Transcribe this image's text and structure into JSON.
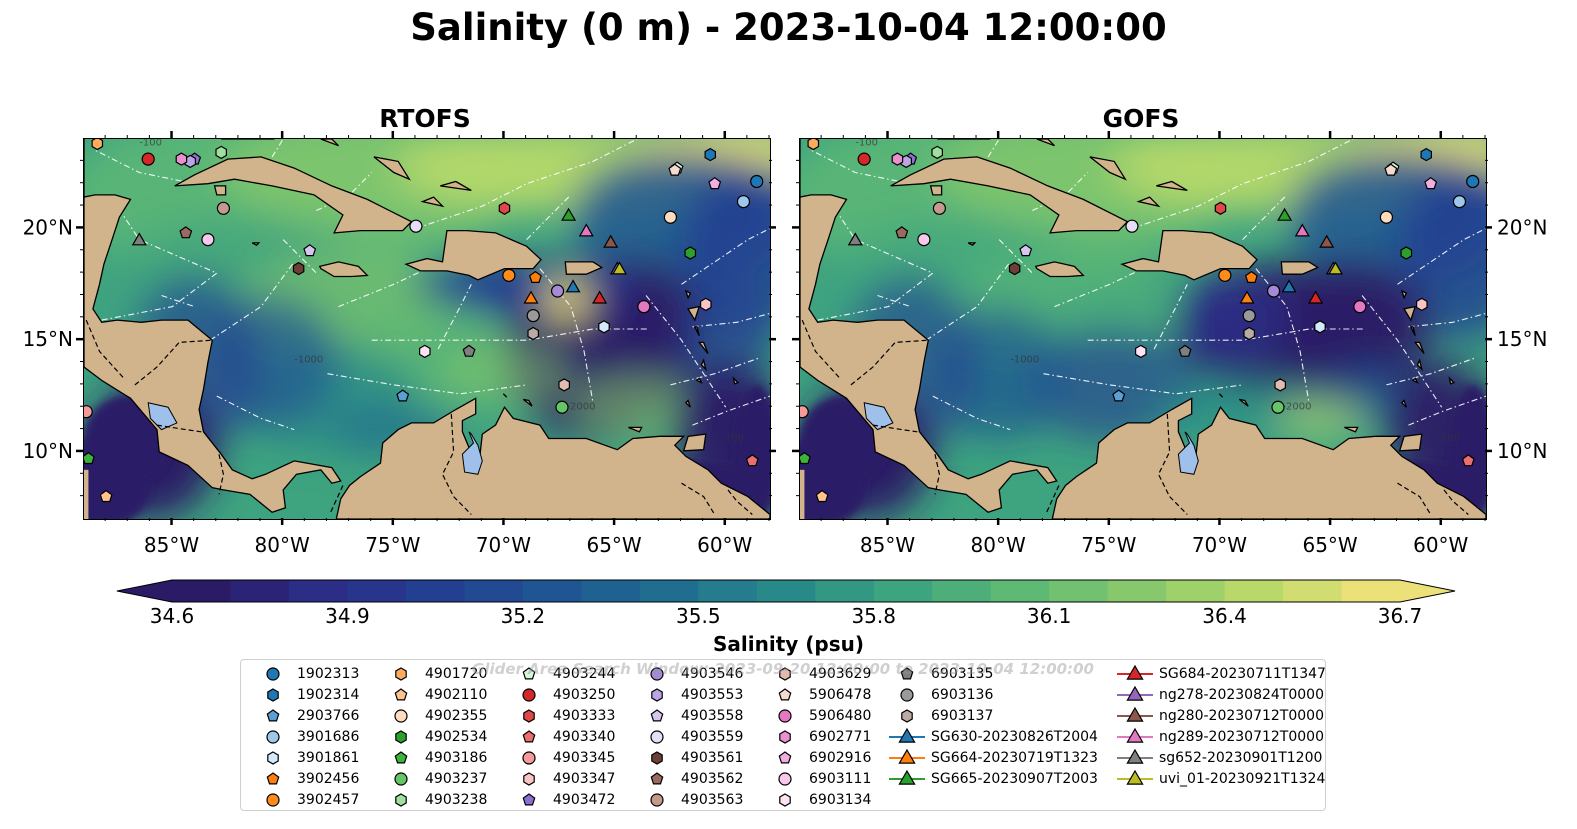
{
  "title": "Salinity (0 m) - 2023-10-04 12:00:00",
  "panels": [
    {
      "title": "RTOFS",
      "variant": "rtofs"
    },
    {
      "title": "GOFS",
      "variant": "gofs"
    }
  ],
  "axes": {
    "lon_ticks": [
      "85°W",
      "80°W",
      "75°W",
      "70°W",
      "65°W",
      "60°W"
    ],
    "lat_ticks": [
      "20°N",
      "15°N",
      "10°N"
    ],
    "lon_range": [
      -89,
      -58
    ],
    "lat_range": [
      7,
      24
    ]
  },
  "colorbar": {
    "label": "Salinity (psu)",
    "ticks": [
      "34.6",
      "34.9",
      "35.2",
      "35.5",
      "35.8",
      "36.1",
      "36.4",
      "36.7"
    ],
    "range": [
      34.6,
      36.7
    ],
    "colors": [
      "#2b1a66",
      "#2b2d86",
      "#233f92",
      "#1f5592",
      "#1f6e8f",
      "#288a88",
      "#3ea37f",
      "#5eb974",
      "#86c86b",
      "#b8d96a",
      "#ece078"
    ]
  },
  "map_colors": {
    "land": "#d2b48c",
    "lake": "#9fc0ea"
  },
  "watermark": "Glider Area Search Window: 2023-09-20 12:00:00 to 2023-10-04 12:00:00",
  "legend": {
    "columns": [
      [
        {
          "label": "1902313",
          "marker": "circle",
          "color": "#1f77b4"
        },
        {
          "label": "1902314",
          "marker": "hexagon",
          "color": "#1f77b4"
        },
        {
          "label": "2903766",
          "marker": "pentagon",
          "color": "#5d9fd3"
        },
        {
          "label": "3901686",
          "marker": "circle",
          "color": "#9ec8ea"
        },
        {
          "label": "3901861",
          "marker": "hexagon",
          "color": "#d4e9fb"
        },
        {
          "label": "3902456",
          "marker": "pentagon",
          "color": "#ff7f0e"
        },
        {
          "label": "3902457",
          "marker": "circle",
          "color": "#ff8c1a"
        }
      ],
      [
        {
          "label": "4901720",
          "marker": "hexagon",
          "color": "#ffab5e"
        },
        {
          "label": "4902110",
          "marker": "pentagon",
          "color": "#ffc38f"
        },
        {
          "label": "4902355",
          "marker": "circle",
          "color": "#ffdcbf"
        },
        {
          "label": "4902534",
          "marker": "hexagon",
          "color": "#2ca02c"
        },
        {
          "label": "4903186",
          "marker": "pentagon",
          "color": "#3cb33c"
        },
        {
          "label": "4903237",
          "marker": "circle",
          "color": "#66c566"
        },
        {
          "label": "4903238",
          "marker": "hexagon",
          "color": "#9fe09f"
        }
      ],
      [
        {
          "label": "4903244",
          "marker": "pentagon",
          "color": "#d6f8d6"
        },
        {
          "label": "4903250",
          "marker": "circle",
          "color": "#d62728"
        },
        {
          "label": "4903333",
          "marker": "hexagon",
          "color": "#e04848"
        },
        {
          "label": "4903340",
          "marker": "pentagon",
          "color": "#ec6f6f"
        },
        {
          "label": "4903345",
          "marker": "circle",
          "color": "#f49a9a"
        },
        {
          "label": "4903347",
          "marker": "hexagon",
          "color": "#fbc4c4"
        },
        {
          "label": "4903472",
          "marker": "pentagon",
          "color": "#8c6fd0"
        }
      ],
      [
        {
          "label": "4903546",
          "marker": "circle",
          "color": "#a58ad8"
        },
        {
          "label": "4903553",
          "marker": "hexagon",
          "color": "#bba6e2"
        },
        {
          "label": "4903558",
          "marker": "pentagon",
          "color": "#d4c6ef"
        },
        {
          "label": "4903559",
          "marker": "circle",
          "color": "#e8ddf6"
        },
        {
          "label": "4903561",
          "marker": "hexagon",
          "color": "#6d3f36"
        },
        {
          "label": "4903562",
          "marker": "pentagon",
          "color": "#9a6a5f"
        },
        {
          "label": "4903563",
          "marker": "circle",
          "color": "#c49a8e"
        }
      ],
      [
        {
          "label": "4903629",
          "marker": "hexagon",
          "color": "#e0bbb0"
        },
        {
          "label": "5906478",
          "marker": "pentagon",
          "color": "#f6dad0"
        },
        {
          "label": "5906480",
          "marker": "circle",
          "color": "#e377c2"
        },
        {
          "label": "6902771",
          "marker": "hexagon",
          "color": "#ea8fd0"
        },
        {
          "label": "6902916",
          "marker": "pentagon",
          "color": "#f2aee0"
        },
        {
          "label": "6903111",
          "marker": "circle",
          "color": "#f7c9ea"
        },
        {
          "label": "6903134",
          "marker": "hexagon",
          "color": "#fde3f5"
        }
      ],
      [
        {
          "label": "6903135",
          "marker": "pentagon",
          "color": "#7f7f7f"
        },
        {
          "label": "6903136",
          "marker": "circle",
          "color": "#9a9a9a"
        },
        {
          "label": "6903137",
          "marker": "hexagon",
          "color": "#bcaaa4"
        },
        {
          "label": "SG630-20230826T2004",
          "marker": "triangle-line",
          "color": "#1f77b4"
        },
        {
          "label": "SG664-20230719T1323",
          "marker": "triangle-line",
          "color": "#ff7f0e"
        },
        {
          "label": "SG665-20230907T2003",
          "marker": "triangle-line",
          "color": "#2ca02c"
        }
      ],
      [
        {
          "label": "SG684-20230711T1347",
          "marker": "triangle-line",
          "color": "#d62728"
        },
        {
          "label": "ng278-20230824T0000",
          "marker": "triangle-line",
          "color": "#9467bd"
        },
        {
          "label": "ng280-20230712T0000",
          "marker": "triangle-line",
          "color": "#8c564b"
        },
        {
          "label": "ng289-20230712T0000",
          "marker": "triangle-line",
          "color": "#e377c2"
        },
        {
          "label": "sg652-20230901T1200",
          "marker": "triangle-line",
          "color": "#7f7f7f"
        },
        {
          "label": "uvi_01-20230921T1324",
          "marker": "triangle-line",
          "color": "#bcbd22"
        }
      ]
    ]
  },
  "chart_data": {
    "type": "heatmap",
    "variable": "Salinity (0 m)",
    "units": "psu",
    "time": "2023-10-04 12:00:00",
    "color_range": [
      34.6,
      36.7
    ],
    "xlabel": "",
    "ylabel": "",
    "xlim": [
      -89,
      -58
    ],
    "ylim": [
      7,
      24
    ],
    "x_ticks": [
      "85°W",
      "80°W",
      "75°W",
      "70°W",
      "65°W",
      "60°W"
    ],
    "y_ticks": [
      "20°N",
      "15°N",
      "10°N"
    ],
    "panels": [
      "RTOFS",
      "GOFS"
    ],
    "observations": [
      {
        "id": "1902313",
        "lon": -58.6,
        "lat": 22.1
      },
      {
        "id": "1902314",
        "lon": -60.7,
        "lat": 23.3
      },
      {
        "id": "2903766",
        "lon": -74.6,
        "lat": 12.5
      },
      {
        "id": "3901686",
        "lon": -59.2,
        "lat": 21.2
      },
      {
        "id": "3901861",
        "lon": -65.5,
        "lat": 15.6
      },
      {
        "id": "3902456",
        "lon": -68.6,
        "lat": 17.8
      },
      {
        "id": "3902457",
        "lon": -69.8,
        "lat": 17.9
      },
      {
        "id": "4901720",
        "lon": -88.4,
        "lat": 23.8
      },
      {
        "id": "4902110",
        "lon": -88.0,
        "lat": 8.0
      },
      {
        "id": "4902355",
        "lon": -62.5,
        "lat": 20.5
      },
      {
        "id": "4902534",
        "lon": -61.6,
        "lat": 18.9
      },
      {
        "id": "4903186",
        "lon": -88.8,
        "lat": 9.7
      },
      {
        "id": "4903237",
        "lon": -67.4,
        "lat": 12.0
      },
      {
        "id": "4903238",
        "lon": -82.8,
        "lat": 23.4
      },
      {
        "id": "4903244",
        "lon": -62.2,
        "lat": 22.7
      },
      {
        "id": "4903250",
        "lon": -86.1,
        "lat": 23.1
      },
      {
        "id": "4903333",
        "lon": -70.0,
        "lat": 20.9
      },
      {
        "id": "4903340",
        "lon": -58.8,
        "lat": 9.6
      },
      {
        "id": "4903345",
        "lon": -88.9,
        "lat": 11.8
      },
      {
        "id": "4903347",
        "lon": -60.9,
        "lat": 16.6
      },
      {
        "id": "4903472",
        "lon": -84.0,
        "lat": 23.1
      },
      {
        "id": "4903546",
        "lon": -67.6,
        "lat": 17.2
      },
      {
        "id": "4903553",
        "lon": -84.2,
        "lat": 23.0
      },
      {
        "id": "4903558",
        "lon": -78.8,
        "lat": 19.0
      },
      {
        "id": "4903559",
        "lon": -74.0,
        "lat": 20.1
      },
      {
        "id": "4903561",
        "lon": -79.3,
        "lat": 18.2
      },
      {
        "id": "4903562",
        "lon": -84.4,
        "lat": 19.8
      },
      {
        "id": "4903563",
        "lon": -82.7,
        "lat": 20.9
      },
      {
        "id": "4903629",
        "lon": -67.3,
        "lat": 13.0
      },
      {
        "id": "5906478",
        "lon": -62.3,
        "lat": 22.6
      },
      {
        "id": "5906480",
        "lon": -63.7,
        "lat": 16.5
      },
      {
        "id": "6902771",
        "lon": -84.6,
        "lat": 23.1
      },
      {
        "id": "6902916",
        "lon": -60.5,
        "lat": 22.0
      },
      {
        "id": "6903111",
        "lon": -83.4,
        "lat": 19.5
      },
      {
        "id": "6903134",
        "lon": -73.6,
        "lat": 14.5
      },
      {
        "id": "6903135",
        "lon": -71.6,
        "lat": 14.5
      },
      {
        "id": "6903136",
        "lon": -68.7,
        "lat": 16.1
      },
      {
        "id": "6903137",
        "lon": -68.7,
        "lat": 15.3
      },
      {
        "id": "SG630-20230826T2004",
        "lon": -66.9,
        "lat": 17.4
      },
      {
        "id": "SG664-20230719T1323",
        "lon": -68.8,
        "lat": 16.9
      },
      {
        "id": "SG665-20230907T2003",
        "lon": -67.1,
        "lat": 20.6
      },
      {
        "id": "SG684-20230711T1347",
        "lon": -65.7,
        "lat": 16.9
      },
      {
        "id": "ng278-20230824T0000",
        "lon": -64.9,
        "lat": 18.2
      },
      {
        "id": "ng280-20230712T0000",
        "lon": -65.2,
        "lat": 19.4
      },
      {
        "id": "ng289-20230712T0000",
        "lon": -66.3,
        "lat": 19.9
      },
      {
        "id": "sg652-20230901T1200",
        "lon": -86.5,
        "lat": 19.5
      },
      {
        "id": "uvi_01-20230921T1324",
        "lon": -64.8,
        "lat": 18.2
      }
    ]
  }
}
